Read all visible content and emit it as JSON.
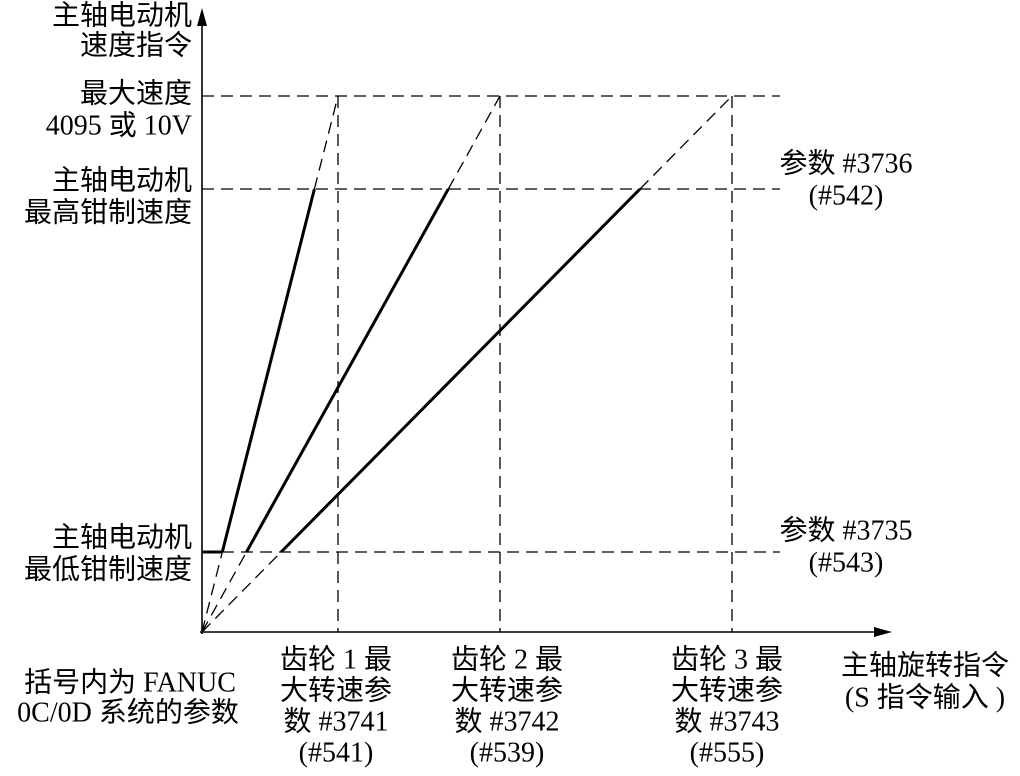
{
  "y_axis_label": [
    "主轴电动机",
    "速度指令"
  ],
  "max_speed_label": [
    "最大速度",
    "4095 或 10V"
  ],
  "upper_clamp_label": [
    "主轴电动机",
    "最高钳制速度"
  ],
  "lower_clamp_label": [
    "主轴电动机",
    "最低钳制速度"
  ],
  "upper_clamp_param": [
    "参数 #3736",
    "(#542)"
  ],
  "lower_clamp_param": [
    "参数 #3735",
    "(#543)"
  ],
  "gears": [
    {
      "label": [
        "齿轮 1 最",
        "大转速参",
        "数 #3741",
        "(#541)"
      ]
    },
    {
      "label": [
        "齿轮 2 最",
        "大转速参",
        "数 #3742",
        "(#539)"
      ]
    },
    {
      "label": [
        "齿轮 3 最",
        "大转速参",
        "数 #3743",
        "(#555)"
      ]
    }
  ],
  "x_axis_label": [
    "主轴旋转指令",
    "(S 指令输入 )"
  ],
  "note": [
    "括号内为 FANUC",
    "0C/0D 系统的参数"
  ]
}
